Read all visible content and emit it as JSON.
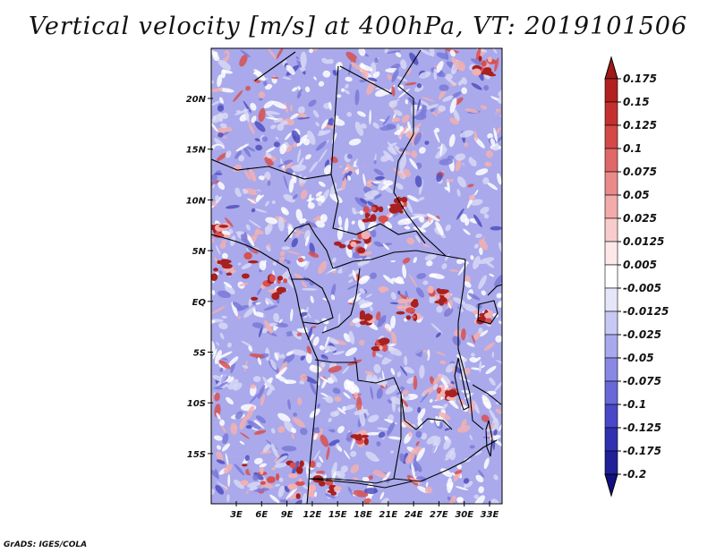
{
  "title": "Vertical velocity [m/s] at 400hPa, VT: 2019101506",
  "credit": "GrADS: IGES/COLA",
  "axes": {
    "lat_labels": [
      "20N",
      "15N",
      "10N",
      "5N",
      "EQ",
      "5S",
      "10S",
      "15S"
    ],
    "lon_labels": [
      "3E",
      "6E",
      "9E",
      "12E",
      "15E",
      "18E",
      "21E",
      "24E",
      "27E",
      "30E",
      "33E"
    ]
  },
  "colorbar": {
    "labels": [
      "0.175",
      "0.15",
      "0.125",
      "0.1",
      "0.075",
      "0.05",
      "0.025",
      "0.0125",
      "0.005",
      "-0.005",
      "-0.0125",
      "-0.025",
      "-0.05",
      "-0.075",
      "-0.1",
      "-0.125",
      "-0.175",
      "-0.2"
    ],
    "colors": [
      "#a01818",
      "#b32020",
      "#c43030",
      "#d44848",
      "#e06868",
      "#ea8a8a",
      "#f2aaaa",
      "#f8cccc",
      "#fce8e8",
      "#ffffff",
      "#e6e6fa",
      "#c8c8f4",
      "#a8a8ee",
      "#8888e4",
      "#6868d8",
      "#4848c8",
      "#3030b0",
      "#202098",
      "#101080"
    ]
  },
  "field_colors": {
    "base": "#a9a9ec",
    "light": "#d8d8f6",
    "white": "#ffffff",
    "pink": "#f2b0b0",
    "red": "#d85050",
    "dark_red": "#a82020",
    "blue": "#7a7ad8",
    "dark_blue": "#5050c0"
  }
}
